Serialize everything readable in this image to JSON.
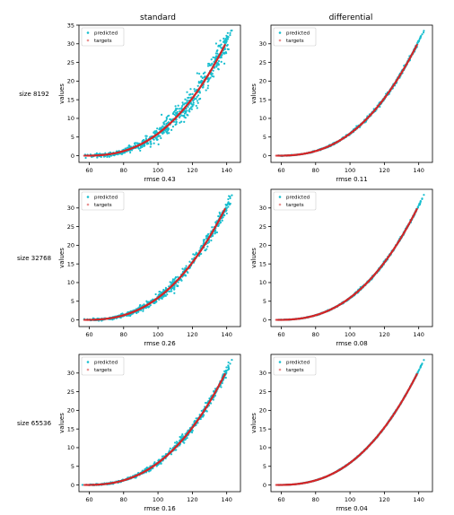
{
  "column_titles": [
    "standard",
    "differential"
  ],
  "row_labels": [
    "size 8192",
    "size 32768",
    "size 65536"
  ],
  "chart_data": [
    {
      "type": "scatter",
      "row": 0,
      "col": 0,
      "xlabel": "rmse 0.43",
      "ylabel": "values",
      "noise": 1.6,
      "xlim": [
        54,
        148
      ],
      "ylim": [
        -1.8,
        35
      ],
      "xticks": [
        60,
        80,
        100,
        120,
        140
      ],
      "yticks": [
        0,
        5,
        10,
        15,
        20,
        25,
        30,
        35
      ],
      "legend": {
        "position": "upper-left",
        "entries": [
          "predicted",
          "targets"
        ]
      },
      "series": [
        {
          "name": "predicted",
          "color": "#17becf"
        },
        {
          "name": "targets",
          "color": "#d62728"
        }
      ],
      "target_curve": {
        "x_start": 57,
        "x_end": 143,
        "y_start": 0,
        "y_end": 33.5
      }
    },
    {
      "type": "scatter",
      "row": 0,
      "col": 1,
      "xlabel": "rmse 0.11",
      "ylabel": "values",
      "noise": 0.25,
      "xlim": [
        54,
        148
      ],
      "ylim": [
        -1.8,
        35
      ],
      "xticks": [
        60,
        80,
        100,
        120,
        140
      ],
      "yticks": [
        0,
        5,
        10,
        15,
        20,
        25,
        30
      ],
      "legend": {
        "position": "upper-left",
        "entries": [
          "predicted",
          "targets"
        ]
      },
      "series": [
        {
          "name": "predicted",
          "color": "#17becf"
        },
        {
          "name": "targets",
          "color": "#d62728"
        }
      ],
      "target_curve": {
        "x_start": 57,
        "x_end": 143,
        "y_start": 0,
        "y_end": 33.5
      }
    },
    {
      "type": "scatter",
      "row": 1,
      "col": 0,
      "xlabel": "rmse 0.26",
      "ylabel": "values",
      "noise": 0.9,
      "xlim": [
        54,
        148
      ],
      "ylim": [
        -1.8,
        35
      ],
      "xticks": [
        60,
        80,
        100,
        120,
        140
      ],
      "yticks": [
        0,
        5,
        10,
        15,
        20,
        25,
        30
      ],
      "legend": {
        "position": "upper-left",
        "entries": [
          "predicted",
          "targets"
        ]
      },
      "series": [
        {
          "name": "predicted",
          "color": "#17becf"
        },
        {
          "name": "targets",
          "color": "#d62728"
        }
      ],
      "target_curve": {
        "x_start": 57,
        "x_end": 143,
        "y_start": 0,
        "y_end": 33.5
      }
    },
    {
      "type": "scatter",
      "row": 1,
      "col": 1,
      "xlabel": "rmse 0.08",
      "ylabel": "values",
      "noise": 0.18,
      "xlim": [
        54,
        148
      ],
      "ylim": [
        -1.8,
        35
      ],
      "xticks": [
        60,
        80,
        100,
        120,
        140
      ],
      "yticks": [
        0,
        5,
        10,
        15,
        20,
        25,
        30
      ],
      "legend": {
        "position": "upper-left",
        "entries": [
          "predicted",
          "targets"
        ]
      },
      "series": [
        {
          "name": "predicted",
          "color": "#17becf"
        },
        {
          "name": "targets",
          "color": "#d62728"
        }
      ],
      "target_curve": {
        "x_start": 57,
        "x_end": 143,
        "y_start": 0,
        "y_end": 33.5
      }
    },
    {
      "type": "scatter",
      "row": 2,
      "col": 0,
      "xlabel": "rmse 0.16",
      "ylabel": "values",
      "noise": 0.55,
      "xlim": [
        54,
        148
      ],
      "ylim": [
        -1.8,
        35
      ],
      "xticks": [
        60,
        80,
        100,
        120,
        140
      ],
      "yticks": [
        0,
        5,
        10,
        15,
        20,
        25,
        30
      ],
      "legend": {
        "position": "upper-left",
        "entries": [
          "predicted",
          "targets"
        ]
      },
      "series": [
        {
          "name": "predicted",
          "color": "#17becf"
        },
        {
          "name": "targets",
          "color": "#d62728"
        }
      ],
      "target_curve": {
        "x_start": 57,
        "x_end": 143,
        "y_start": 0,
        "y_end": 33.5
      }
    },
    {
      "type": "scatter",
      "row": 2,
      "col": 1,
      "xlabel": "rmse 0.04",
      "ylabel": "values",
      "noise": 0.1,
      "xlim": [
        54,
        148
      ],
      "ylim": [
        -1.8,
        35
      ],
      "xticks": [
        60,
        80,
        100,
        120,
        140
      ],
      "yticks": [
        0,
        5,
        10,
        15,
        20,
        25,
        30
      ],
      "legend": {
        "position": "upper-left",
        "entries": [
          "predicted",
          "targets"
        ]
      },
      "series": [
        {
          "name": "predicted",
          "color": "#17becf"
        },
        {
          "name": "targets",
          "color": "#d62728"
        }
      ],
      "target_curve": {
        "x_start": 57,
        "x_end": 143,
        "y_start": 0,
        "y_end": 33.5
      }
    }
  ]
}
